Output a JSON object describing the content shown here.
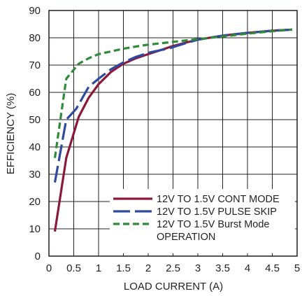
{
  "chart_data": {
    "type": "line",
    "xlabel": "LOAD CURRENT (A)",
    "ylabel": "EFFICIENCY (%)",
    "xlim": [
      0,
      5
    ],
    "ylim": [
      0,
      90
    ],
    "grid": true,
    "legend_position": "bottom-right",
    "x_ticks": [
      "0",
      "0.5",
      "1",
      "1.5",
      "2",
      "2.5",
      "3",
      "3.5",
      "4",
      "4.5",
      "5"
    ],
    "y_ticks": [
      "0",
      "10",
      "20",
      "30",
      "40",
      "50",
      "60",
      "70",
      "80",
      "90"
    ],
    "series": [
      {
        "name": "12V TO 1.5V CONT MODE",
        "color": "#8b1a3a",
        "dash": "solid",
        "points": [
          [
            0.12,
            9
          ],
          [
            0.35,
            36
          ],
          [
            0.6,
            51
          ],
          [
            0.8,
            58
          ],
          [
            1.0,
            63
          ],
          [
            1.25,
            67.5
          ],
          [
            1.5,
            70.5
          ],
          [
            1.75,
            72.5
          ],
          [
            2.0,
            74
          ],
          [
            2.25,
            75.5
          ],
          [
            2.5,
            77
          ],
          [
            2.75,
            78.2
          ],
          [
            3.0,
            79.3
          ],
          [
            3.5,
            80.8
          ],
          [
            4.0,
            81.8
          ],
          [
            4.5,
            82.6
          ],
          [
            4.9,
            83
          ]
        ]
      },
      {
        "name": "12V TO 1.5V PULSE SKIP",
        "color": "#2e4a9e",
        "dash": "long-dash",
        "points": [
          [
            0.12,
            27
          ],
          [
            0.35,
            50
          ],
          [
            0.55,
            54
          ],
          [
            0.8,
            62
          ],
          [
            1.0,
            65
          ],
          [
            1.25,
            68.5
          ],
          [
            1.5,
            71
          ],
          [
            1.75,
            73
          ],
          [
            2.0,
            74.5
          ],
          [
            2.25,
            75.5
          ],
          [
            2.4,
            76
          ],
          [
            2.75,
            78
          ],
          [
            3.0,
            79.3
          ],
          [
            3.5,
            80.8
          ],
          [
            4.0,
            81.8
          ],
          [
            4.5,
            82.6
          ],
          [
            4.9,
            83
          ]
        ]
      },
      {
        "name": "12V TO 1.5V Burst Mode OPERATION",
        "color": "#2e8b3a",
        "dash": "short-dash",
        "points": [
          [
            0.12,
            36
          ],
          [
            0.35,
            65
          ],
          [
            0.6,
            70.5
          ],
          [
            0.8,
            72.5
          ],
          [
            1.0,
            74
          ],
          [
            1.25,
            75
          ],
          [
            1.5,
            76
          ],
          [
            1.75,
            76.8
          ],
          [
            2.0,
            77.5
          ],
          [
            2.5,
            78.5
          ],
          [
            3.0,
            79.5
          ],
          [
            3.5,
            80.5
          ],
          [
            4.0,
            81.5
          ],
          [
            4.5,
            82.4
          ],
          [
            4.9,
            83
          ]
        ]
      }
    ],
    "legend": [
      {
        "line1": "12V TO 1.5V CONT MODE",
        "line2": ""
      },
      {
        "line1": "12V TO 1.5V PULSE SKIP",
        "line2": ""
      },
      {
        "line1": "12V TO 1.5V Burst Mode",
        "line2": "OPERATION"
      }
    ]
  }
}
